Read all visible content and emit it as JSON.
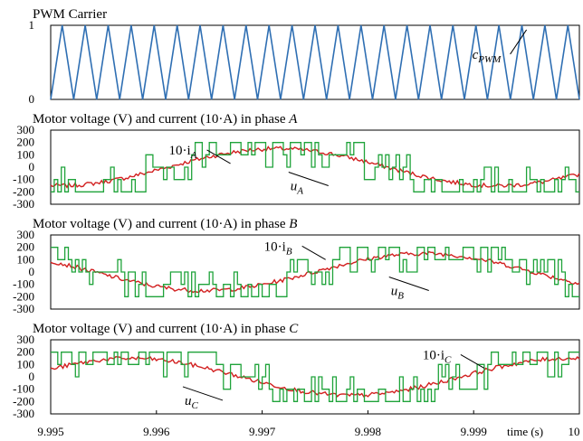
{
  "chart_data": [
    {
      "type": "line",
      "title": "PWM Carrier",
      "xlim": [
        9.995,
        10
      ],
      "ylim": [
        0,
        1
      ],
      "yticks": [
        "0",
        "1"
      ],
      "grid": false,
      "series": [
        {
          "name": "c_PWM",
          "kind": "triangle",
          "color": "#2f6fb3",
          "periods": 23,
          "min": 0,
          "max": 1
        }
      ],
      "annotations": [
        {
          "text": "c",
          "sub": "PWM",
          "target_x": 9.9995,
          "target_y": 0.94
        }
      ]
    },
    {
      "type": "line",
      "title": "Motor voltage (V) and current (10·A) in phase A",
      "title_prefix": "Motor voltage (V) and current (10·A) in phase ",
      "title_phase": "A",
      "xlim": [
        9.995,
        10
      ],
      "ylim": [
        -300,
        300
      ],
      "yticks": [
        "300",
        "200",
        "100",
        "0",
        "-100",
        "-200",
        "-300"
      ],
      "grid": false,
      "series": [
        {
          "name": "10·i_A",
          "kind": "current",
          "color": "#d22020",
          "amplitude": 150,
          "phase_deg": -96,
          "period_s": 0.00415
        },
        {
          "name": "u_A",
          "kind": "pwm-voltage",
          "color": "#1fa33a",
          "phase_deg": -96,
          "levels": [
            -200,
            -100,
            0,
            100,
            200
          ]
        }
      ],
      "annotations": [
        {
          "text": "10·i",
          "sub": "A",
          "target_x": 9.9967,
          "target_y": 30
        },
        {
          "text": "u",
          "sub": "A",
          "target_x": 9.99725,
          "target_y": -40
        }
      ]
    },
    {
      "type": "line",
      "title": "Motor voltage (V) and current (10·A) in phase B",
      "title_prefix": "Motor voltage (V) and current (10·A) in phase ",
      "title_phase": "B",
      "xlim": [
        9.995,
        10
      ],
      "ylim": [
        -300,
        300
      ],
      "yticks": [
        "300",
        "200",
        "100",
        "0",
        "-100",
        "-200",
        "-300"
      ],
      "grid": false,
      "series": [
        {
          "name": "10·i_B",
          "kind": "current",
          "color": "#d22020",
          "amplitude": 150,
          "phase_deg": 144,
          "period_s": 0.00415
        },
        {
          "name": "u_B",
          "kind": "pwm-voltage",
          "color": "#1fa33a",
          "phase_deg": 144,
          "levels": [
            -200,
            -100,
            0,
            100,
            200
          ]
        }
      ],
      "annotations": [
        {
          "text": "10·i",
          "sub": "B",
          "target_x": 9.9976,
          "target_y": 100
        },
        {
          "text": "u",
          "sub": "B",
          "target_x": 9.9982,
          "target_y": -40
        }
      ]
    },
    {
      "type": "line",
      "title": "Motor voltage (V) and current (10·A) in phase C",
      "title_prefix": "Motor voltage (V) and current (10·A) in phase ",
      "title_phase": "C",
      "xlim": [
        9.995,
        10
      ],
      "ylim": [
        -300,
        300
      ],
      "yticks": [
        "300",
        "200",
        "100",
        "0",
        "-100",
        "-200",
        "-300"
      ],
      "grid": false,
      "series": [
        {
          "name": "10·i_C",
          "kind": "current",
          "color": "#d22020",
          "amplitude": 150,
          "phase_deg": 24,
          "period_s": 0.00415
        },
        {
          "name": "u_C",
          "kind": "pwm-voltage",
          "color": "#1fa33a",
          "phase_deg": 24,
          "levels": [
            -200,
            -100,
            0,
            100,
            200
          ]
        }
      ],
      "annotations": [
        {
          "text": "10·i",
          "sub": "C",
          "target_x": 9.9991,
          "target_y": 70
        },
        {
          "text": "u",
          "sub": "C",
          "target_x": 9.99625,
          "target_y": -80
        }
      ]
    }
  ],
  "x_axis": {
    "ticks": [
      9.995,
      9.996,
      9.997,
      9.998,
      9.999,
      10
    ],
    "tick_labels": [
      "9.995",
      "9.996",
      "9.997",
      "9.998",
      "9.999",
      "10"
    ],
    "label": "time (s)"
  }
}
